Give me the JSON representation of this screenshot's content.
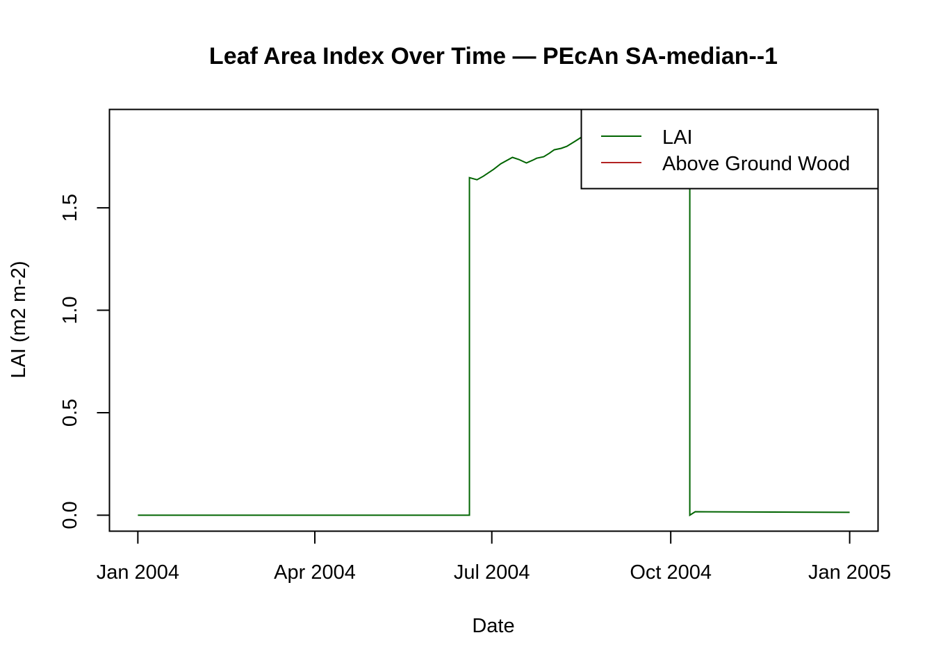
{
  "chart_data": {
    "type": "line",
    "title": "Leaf Area Index Over Time — PEcAn SA-median--1",
    "xlabel": "Date",
    "ylabel": "LAI (m2 m-2)",
    "x_units": "days since 2004-01-01",
    "xlim": [
      -14.6,
      380.6
    ],
    "ylim": [
      -0.078,
      1.98
    ],
    "x_ticks": [
      {
        "value": 0,
        "label": "Jan 2004"
      },
      {
        "value": 91,
        "label": "Apr 2004"
      },
      {
        "value": 182,
        "label": "Jul 2004"
      },
      {
        "value": 274,
        "label": "Oct 2004"
      },
      {
        "value": 366,
        "label": "Jan 2005"
      }
    ],
    "y_ticks": [
      {
        "value": 0.0,
        "label": "0.0"
      },
      {
        "value": 0.5,
        "label": "0.5"
      },
      {
        "value": 1.0,
        "label": "1.0"
      },
      {
        "value": 1.5,
        "label": "1.5"
      }
    ],
    "legend": {
      "position": "top-right"
    },
    "series": [
      {
        "name": "LAI",
        "color": "#006400",
        "x": [
          0,
          170.5,
          170.5,
          174.4,
          177.6,
          183.0,
          186.6,
          192.6,
          195.9,
          199.8,
          203.0,
          205.1,
          208.7,
          211.6,
          214.1,
          217.7,
          220.6,
          225.2,
          228.0,
          240,
          255,
          270,
          283.8,
          283.8,
          286.6,
          366
        ],
        "y": [
          0,
          0,
          1.647,
          1.637,
          1.654,
          1.688,
          1.715,
          1.746,
          1.736,
          1.719,
          1.732,
          1.742,
          1.749,
          1.766,
          1.783,
          1.79,
          1.8,
          1.827,
          1.844,
          1.87,
          1.89,
          1.91,
          1.9,
          0.0,
          0.017,
          0.014
        ]
      },
      {
        "name": "Above Ground Wood",
        "color": "#B22222",
        "x": [],
        "y": []
      }
    ]
  }
}
